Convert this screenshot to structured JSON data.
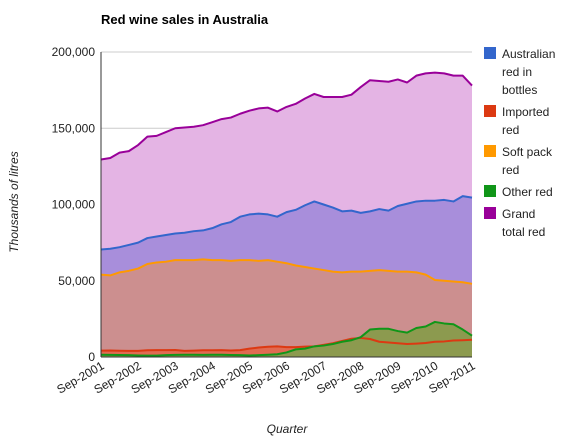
{
  "chart_data": {
    "type": "area",
    "title": "Red wine sales in Australia",
    "xlabel": "Quarter",
    "ylabel": "Thousands of litres",
    "ylim": [
      0,
      200000
    ],
    "y_ticks": [
      "0",
      "50,000",
      "100,000",
      "150,000",
      "200,000"
    ],
    "y_tick_values": [
      0,
      50000,
      100000,
      150000,
      200000
    ],
    "x_tick_labels": [
      "Sep-2001",
      "Sep-2002",
      "Sep-2003",
      "Sep-2004",
      "Sep-2005",
      "Sep-2006",
      "Sep-2007",
      "Sep-2008",
      "Sep-2009",
      "Sep-2010",
      "Sep-2011"
    ],
    "x_tick_index": [
      0,
      4,
      8,
      12,
      16,
      20,
      24,
      28,
      32,
      36,
      40
    ],
    "grid": true,
    "legend_position": "right",
    "quarters": 41,
    "series": [
      {
        "name": "Australian red in bottles",
        "color": "#3366cc",
        "fill": "#a88edb",
        "values": [
          70500,
          71000,
          72000,
          73500,
          75000,
          78000,
          79000,
          80000,
          81000,
          81500,
          82500,
          83000,
          84500,
          87000,
          88500,
          92000,
          93500,
          94000,
          93500,
          92000,
          95000,
          96500,
          99500,
          102000,
          100000,
          98000,
          95500,
          96000,
          94500,
          95500,
          97000,
          96000,
          99000,
          100500,
          102000,
          102500,
          102500,
          103000,
          102000,
          105500,
          104500
        ]
      },
      {
        "name": "Imported red",
        "color": "#dc3912",
        "fill": "#e06a52",
        "values": [
          4200,
          4300,
          4100,
          4000,
          4000,
          4400,
          4500,
          4500,
          4600,
          4000,
          4200,
          4400,
          4400,
          4500,
          4300,
          4500,
          5500,
          6200,
          6700,
          7000,
          6500,
          6500,
          6800,
          7000,
          8000,
          9000,
          10500,
          12000,
          12500,
          11800,
          10000,
          9500,
          9000,
          8500,
          8800,
          9200,
          10000,
          10200,
          10800,
          11000,
          11300
        ]
      },
      {
        "name": "Soft pack red",
        "color": "#ff9900",
        "fill": "#cc8f8f",
        "values": [
          54000,
          53500,
          55500,
          56500,
          58000,
          61000,
          62000,
          62500,
          63500,
          63500,
          63500,
          64000,
          63500,
          63500,
          63000,
          63500,
          63500,
          63000,
          63500,
          62500,
          61500,
          60000,
          59000,
          58000,
          57000,
          56000,
          55500,
          56000,
          56000,
          56500,
          57000,
          56500,
          56000,
          56000,
          55500,
          54000,
          50500,
          50000,
          49500,
          49000,
          48000
        ]
      },
      {
        "name": "Other red",
        "color": "#109618",
        "fill": "#8c9a4f",
        "values": [
          1500,
          1400,
          1300,
          1200,
          1000,
          900,
          900,
          1200,
          1400,
          1500,
          1500,
          1400,
          1500,
          1500,
          1300,
          1200,
          1000,
          1200,
          1500,
          1800,
          3000,
          5000,
          5500,
          7000,
          7500,
          8500,
          10000,
          11000,
          13000,
          18000,
          18500,
          18500,
          17000,
          16000,
          19000,
          20000,
          23000,
          22000,
          21500,
          18000,
          14000
        ]
      },
      {
        "name": "Grand total red",
        "color": "#990099",
        "fill": "#e4b4e4",
        "values": [
          129500,
          130500,
          134000,
          135000,
          139000,
          144500,
          145000,
          147500,
          150000,
          150500,
          151000,
          152000,
          154000,
          156000,
          157000,
          159500,
          161500,
          163000,
          163500,
          161000,
          164000,
          166000,
          169500,
          172500,
          170500,
          170500,
          170500,
          172000,
          177000,
          181500,
          181000,
          180500,
          182000,
          180000,
          184500,
          186000,
          186500,
          186000,
          184500,
          184500,
          178000
        ]
      }
    ]
  }
}
